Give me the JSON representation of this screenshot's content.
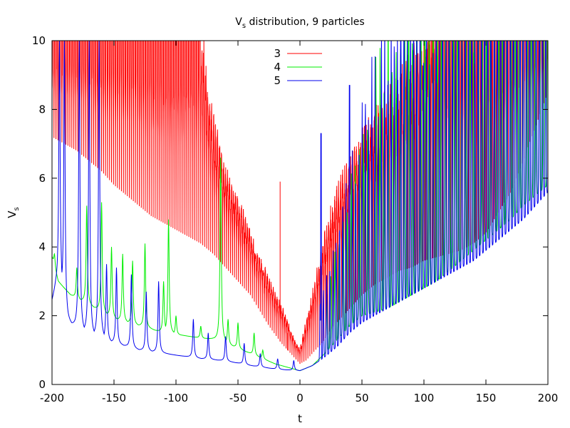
{
  "chart_data": {
    "type": "line",
    "title": {
      "main": "V",
      "sub": "s",
      "rest": " distribution, 9 particles"
    },
    "xlabel": "t",
    "ylabel": {
      "main": "V",
      "sub": "s"
    },
    "xlim": [
      -200,
      200
    ],
    "ylim": [
      0,
      10
    ],
    "xticks": [
      "-200",
      "-150",
      "-100",
      "-50",
      "0",
      "50",
      "100",
      "150",
      "200"
    ],
    "yticks": [
      "0",
      "2",
      "4",
      "6",
      "8",
      "10"
    ],
    "legend_position": "top-center",
    "grid": false,
    "series": [
      {
        "name": "3",
        "color": "#ff0000",
        "envelope_t": [
          -200,
          -190,
          -180,
          -170,
          -160,
          -150,
          -140,
          -130,
          -120,
          -110,
          -100,
          -90,
          -80,
          -70,
          -60,
          -50,
          -45,
          -40,
          -35,
          -30,
          -25,
          -20,
          -15,
          -10,
          -5,
          0,
          5,
          10,
          15,
          20,
          25,
          30,
          40,
          50,
          60,
          70,
          80,
          90,
          100,
          110,
          120,
          130,
          140,
          150,
          160,
          170,
          180,
          190,
          200
        ],
        "envelope_base": [
          7.2,
          7.0,
          6.8,
          6.5,
          6.2,
          5.8,
          5.5,
          5.2,
          4.9,
          4.7,
          4.5,
          4.3,
          4.1,
          3.8,
          3.4,
          3.0,
          2.8,
          2.6,
          2.3,
          2.0,
          1.7,
          1.45,
          1.2,
          1.0,
          0.8,
          0.6,
          0.7,
          0.9,
          1.1,
          1.3,
          1.6,
          1.8,
          2.2,
          2.6,
          2.9,
          3.1,
          3.3,
          3.4,
          3.6,
          3.7,
          3.8,
          3.9,
          4.1,
          4.4,
          5.0,
          5.6,
          6.5,
          7.5,
          8.5
        ],
        "envelope_peak": [
          10,
          10,
          10,
          10,
          10,
          10,
          10,
          10,
          10,
          10,
          10,
          10,
          10,
          7.5,
          6.0,
          5.2,
          4.8,
          4.3,
          3.8,
          3.4,
          3.0,
          2.6,
          2.2,
          1.8,
          1.3,
          1.0,
          1.8,
          2.5,
          3.4,
          4.2,
          4.8,
          5.4,
          6.2,
          7.0,
          7.5,
          8.0,
          8.5,
          9.0,
          9.5,
          10,
          10,
          10,
          10,
          10,
          10,
          10,
          10,
          10,
          10
        ],
        "oscillation_period": 1.6,
        "spikes": [
          {
            "t": -16,
            "v": 5.9
          },
          {
            "t": -10,
            "v": 1.5
          }
        ]
      },
      {
        "name": "4",
        "color": "#00ee00",
        "baseline_t": [
          -200,
          -195,
          -190,
          -185,
          -180,
          -170,
          -160,
          -150,
          -140,
          -130,
          -120,
          -110,
          -100,
          -90,
          -80,
          -70,
          -60,
          -50,
          -40,
          -30,
          -20,
          -10,
          0,
          10,
          20,
          30,
          40,
          50,
          60,
          70,
          80,
          90,
          100,
          110,
          120,
          130,
          140,
          150,
          160,
          170,
          180,
          190,
          200
        ],
        "baseline_v": [
          3.7,
          3.0,
          2.8,
          2.6,
          2.5,
          2.3,
          2.1,
          1.9,
          1.8,
          1.7,
          1.6,
          1.5,
          1.45,
          1.4,
          1.35,
          1.3,
          1.2,
          1.05,
          0.9,
          0.75,
          0.6,
          0.5,
          0.4,
          0.55,
          0.9,
          1.3,
          1.7,
          2.0,
          2.1,
          2.2,
          2.4,
          2.6,
          2.8,
          3.0,
          3.3,
          3.6,
          3.9,
          4.2,
          4.5,
          4.8,
          5.2,
          5.5,
          5.8
        ],
        "spikes": [
          {
            "t": -198,
            "v": 3.8
          },
          {
            "t": -180,
            "v": 3.4
          },
          {
            "t": -172,
            "v": 5.2
          },
          {
            "t": -160,
            "v": 5.3
          },
          {
            "t": -152,
            "v": 4.0
          },
          {
            "t": -143,
            "v": 3.8
          },
          {
            "t": -135,
            "v": 3.6
          },
          {
            "t": -125,
            "v": 4.1
          },
          {
            "t": -110,
            "v": 3.0
          },
          {
            "t": -106,
            "v": 4.8
          },
          {
            "t": -100,
            "v": 2.0
          },
          {
            "t": -80,
            "v": 1.7
          },
          {
            "t": -64,
            "v": 6.6
          },
          {
            "t": -58,
            "v": 1.9
          },
          {
            "t": -50,
            "v": 1.8
          },
          {
            "t": -37,
            "v": 1.5
          },
          {
            "t": -30,
            "v": 1.0
          }
        ],
        "dense_from_t": 20,
        "dense_period": 3.3
      },
      {
        "name": "5",
        "color": "#0000ee",
        "baseline_t": [
          -200,
          -197,
          -193,
          -190,
          -187,
          -180,
          -170,
          -160,
          -150,
          -140,
          -130,
          -120,
          -110,
          -100,
          -90,
          -80,
          -70,
          -60,
          -50,
          -40,
          -30,
          -20,
          -10,
          0,
          10,
          20,
          30,
          40,
          50,
          60,
          70,
          80,
          90,
          100,
          110,
          120,
          130,
          140,
          150,
          160,
          170,
          180,
          190,
          200
        ],
        "baseline_v": [
          2.4,
          2.8,
          2.9,
          2.0,
          1.8,
          1.6,
          1.4,
          1.3,
          1.2,
          1.1,
          1.0,
          0.95,
          0.9,
          0.85,
          0.8,
          0.75,
          0.72,
          0.68,
          0.62,
          0.55,
          0.5,
          0.45,
          0.42,
          0.4,
          0.55,
          0.8,
          1.1,
          1.5,
          1.8,
          2.0,
          2.2,
          2.4,
          2.6,
          2.8,
          3.0,
          3.2,
          3.4,
          3.6,
          3.9,
          4.2,
          4.5,
          4.8,
          5.2,
          5.6
        ],
        "spikes": [
          {
            "t": -194,
            "v": 10
          },
          {
            "t": -190,
            "v": 10
          },
          {
            "t": -178,
            "v": 10
          },
          {
            "t": -170,
            "v": 10
          },
          {
            "t": -162,
            "v": 10
          },
          {
            "t": -156,
            "v": 3.5
          },
          {
            "t": -148,
            "v": 3.4
          },
          {
            "t": -136,
            "v": 3.2
          },
          {
            "t": -124,
            "v": 2.7
          },
          {
            "t": -114,
            "v": 3.0
          },
          {
            "t": -86,
            "v": 1.9
          },
          {
            "t": -74,
            "v": 1.5
          },
          {
            "t": -60,
            "v": 1.4
          },
          {
            "t": -45,
            "v": 1.2
          },
          {
            "t": -32,
            "v": 0.9
          },
          {
            "t": -18,
            "v": 0.75
          },
          {
            "t": -5,
            "v": 0.7
          }
        ],
        "dense_from_t": 15,
        "dense_period": 2.6,
        "tall_spikes": [
          {
            "t": 17,
            "v": 7.3
          },
          {
            "t": 40,
            "v": 8.7
          }
        ]
      }
    ]
  }
}
